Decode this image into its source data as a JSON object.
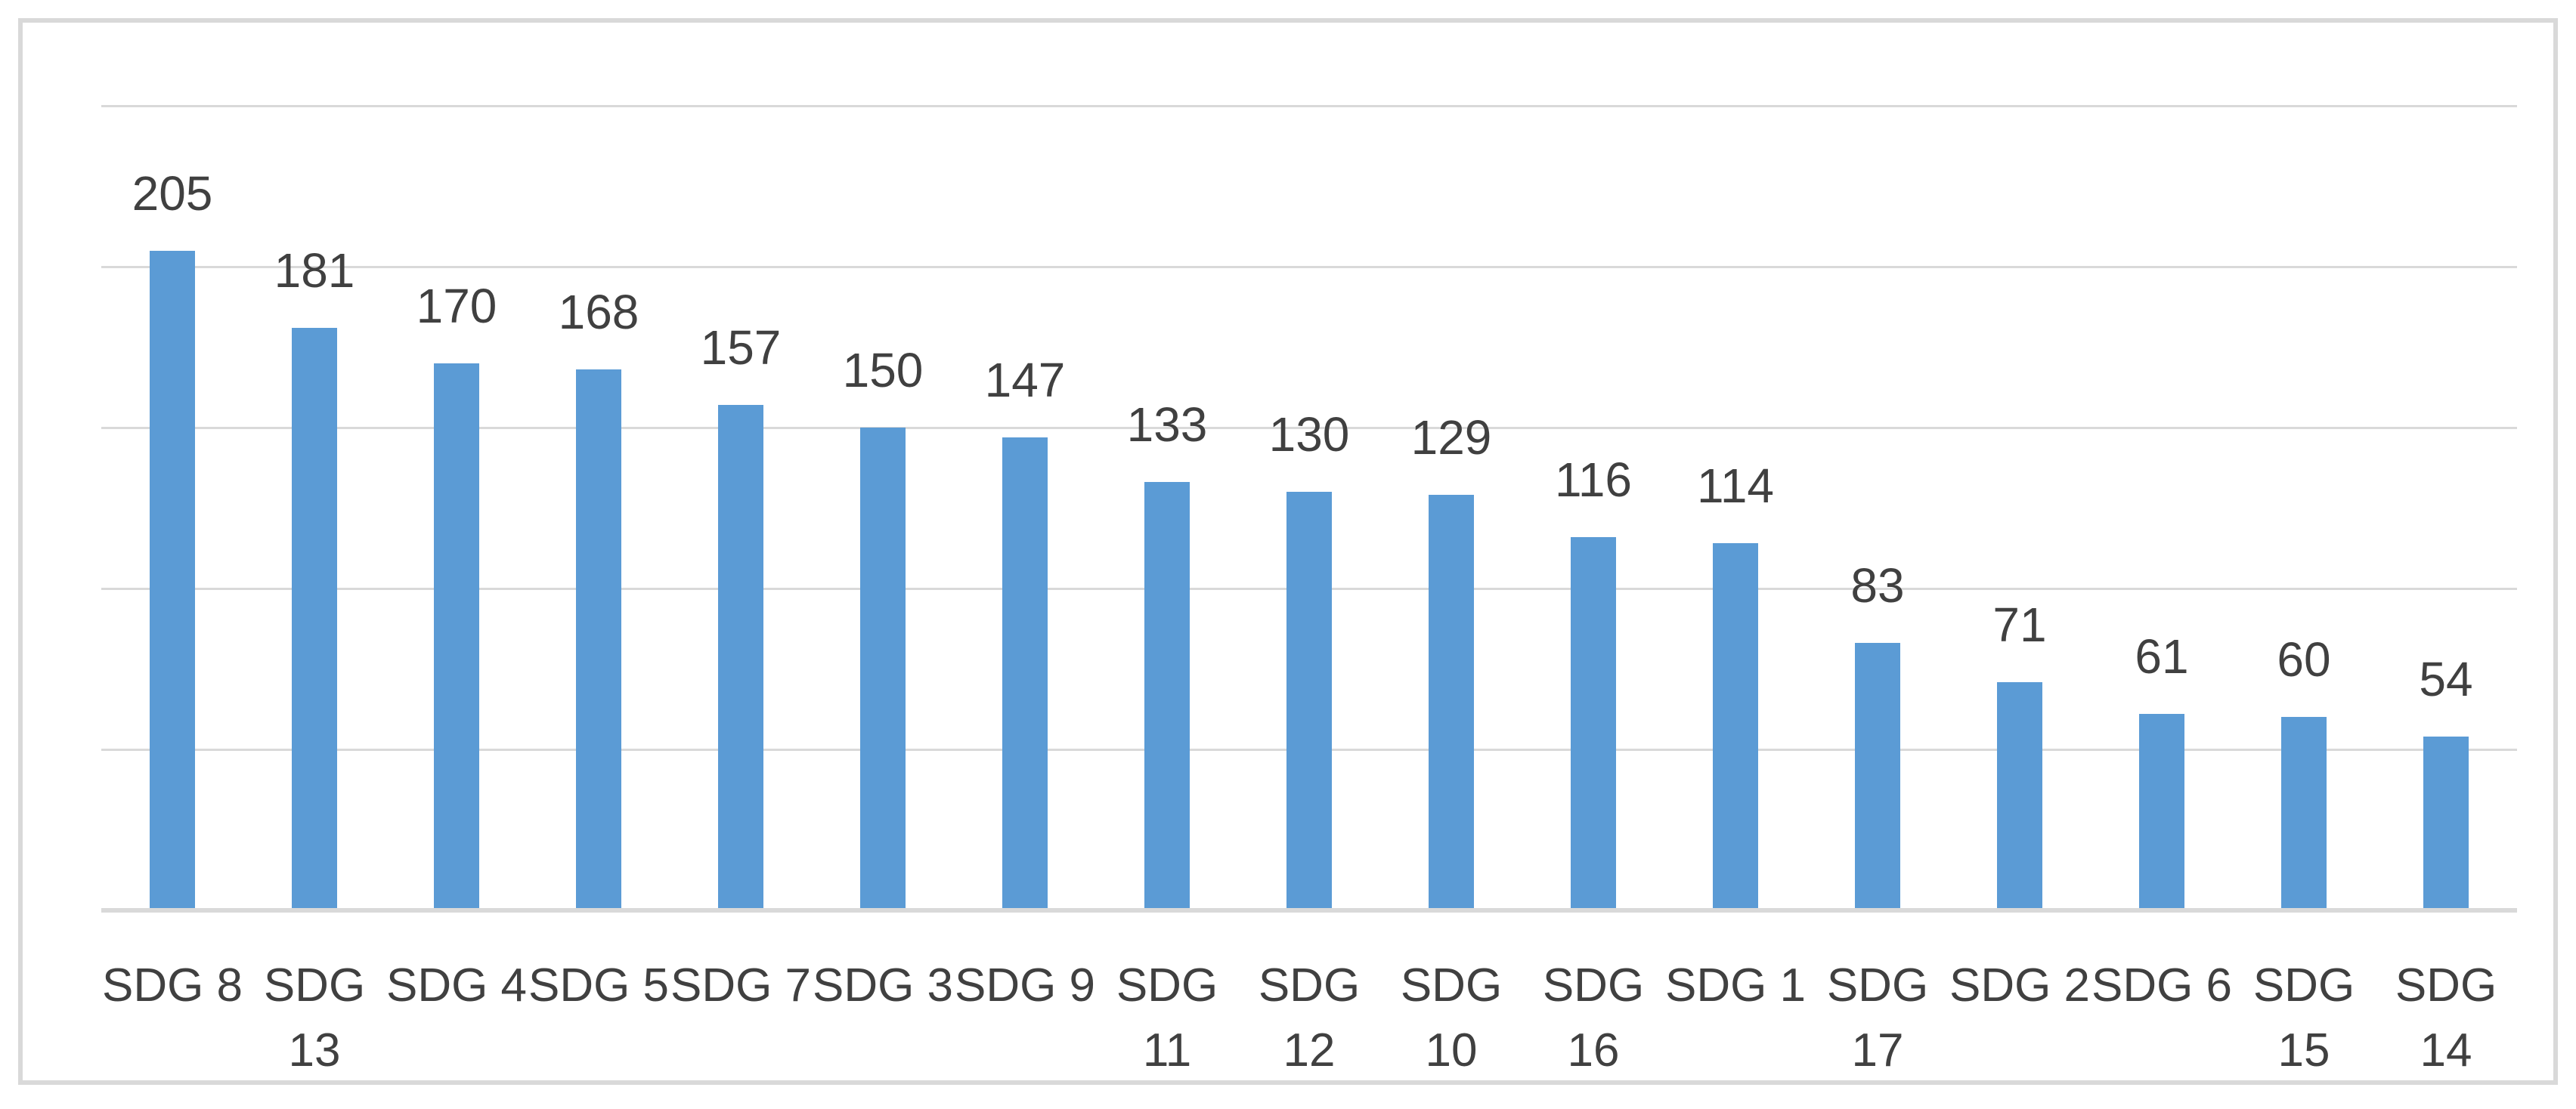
{
  "chart_data": {
    "type": "bar",
    "title": "",
    "xlabel": "",
    "ylabel": "",
    "categories": [
      "SDG 8",
      "SDG 13",
      "SDG 4",
      "SDG 5",
      "SDG 7",
      "SDG 3",
      "SDG 9",
      "SDG 11",
      "SDG 12",
      "SDG 10",
      "SDG 16",
      "SDG 1",
      "SDG 17",
      "SDG 2",
      "SDG 6",
      "SDG 15",
      "SDG 14"
    ],
    "values": [
      205,
      181,
      170,
      168,
      157,
      150,
      147,
      133,
      130,
      129,
      116,
      114,
      83,
      71,
      61,
      60,
      54
    ],
    "data_labels": [
      "205",
      "181",
      "170",
      "168",
      "157",
      "150",
      "147",
      "133",
      "130",
      "129",
      "116",
      "114",
      "83",
      "71",
      "61",
      "60",
      "54"
    ],
    "ylim": [
      0,
      250
    ],
    "gridline_interval": 50,
    "grid": true,
    "legend": false,
    "y_tick_labels_visible": false,
    "colors": {
      "bar": "#5B9BD5",
      "gridline": "#D9D9D9",
      "axis_line": "#D9D9D9",
      "frame_border": "#D9D9D9",
      "text": "#404040",
      "background": "#FFFFFF"
    }
  }
}
